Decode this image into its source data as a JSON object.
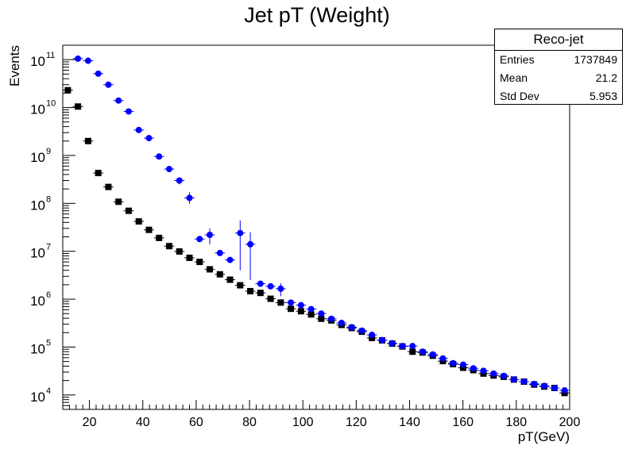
{
  "chart_data": {
    "type": "scatter",
    "title": "Jet pT (Weight)",
    "xlabel": "pT(GeV)",
    "ylabel": "Events",
    "xlim": [
      10,
      200
    ],
    "ylim": [
      5000,
      200000000000
    ],
    "log_y": true,
    "x_ticks": [
      20,
      40,
      60,
      80,
      100,
      120,
      140,
      160,
      180,
      200
    ],
    "y_ticks": [
      {
        "value": 10000,
        "base": "10",
        "exp": "4"
      },
      {
        "value": 100000,
        "base": "10",
        "exp": "5"
      },
      {
        "value": 1000000,
        "base": "10",
        "exp": "6"
      },
      {
        "value": 10000000,
        "base": "10",
        "exp": "7"
      },
      {
        "value": 100000000,
        "base": "10",
        "exp": "8"
      },
      {
        "value": 1000000000,
        "base": "10",
        "exp": "9"
      },
      {
        "value": 10000000000,
        "base": "10",
        "exp": "10"
      },
      {
        "value": 100000000000,
        "base": "10",
        "exp": "11"
      }
    ],
    "grid": false,
    "series": [
      {
        "color": "#000000",
        "marker": "square",
        "x": [
          11.9,
          15.7,
          19.5,
          23.3,
          27.1,
          30.9,
          34.7,
          38.5,
          42.3,
          46.1,
          49.9,
          53.7,
          57.5,
          61.3,
          65.1,
          68.9,
          72.7,
          76.5,
          80.3,
          84.1,
          87.9,
          91.7,
          95.5,
          99.3,
          103.1,
          106.9,
          110.7,
          114.5,
          118.3,
          122.1,
          125.9,
          129.7,
          133.5,
          137.3,
          141.1,
          144.9,
          148.7,
          152.5,
          156.3,
          160.1,
          163.9,
          167.7,
          171.5,
          175.3,
          179.1,
          182.9,
          186.7,
          190.5,
          194.3,
          198.1
        ],
        "y": [
          23000000000,
          10500000000,
          2000000000,
          430000000,
          220000000,
          108000000,
          70000000,
          42000000,
          28000000,
          19000000,
          12800000,
          9900000,
          7300000,
          6000000,
          4200000,
          3300000,
          2550000,
          1950000,
          1470000,
          1350000,
          1020000,
          850000,
          630000,
          560000,
          480000,
          390000,
          360000,
          290000,
          250000,
          210000,
          155000,
          138000,
          118000,
          103000,
          80000,
          77000,
          66000,
          51000,
          44000,
          37000,
          33000,
          28000,
          25500,
          24000,
          21000,
          19000,
          16500,
          15000,
          14000,
          11000
        ],
        "y_err": []
      },
      {
        "color": "#0000ff",
        "marker": "circle",
        "x": [
          15.7,
          19.5,
          23.3,
          27.1,
          30.9,
          34.7,
          38.5,
          42.3,
          46.1,
          49.9,
          53.7,
          57.5,
          61.3,
          65.1,
          68.9,
          72.7,
          76.5,
          80.3,
          84.1,
          87.9,
          91.7,
          95.5,
          99.3,
          103.1,
          106.9,
          110.7,
          114.5,
          118.3,
          122.1,
          125.9,
          129.7,
          133.5,
          137.3,
          141.1,
          144.9,
          148.7,
          152.5,
          156.3,
          160.1,
          163.9,
          167.7,
          171.5,
          175.3,
          179.1,
          182.9,
          186.7,
          190.5,
          194.3,
          198.1
        ],
        "y": [
          105000000000,
          95000000000,
          51000000000,
          30000000000,
          14000000000,
          8300000000,
          3400000000,
          2300000000,
          950000000,
          520000000,
          300000000,
          130000000,
          18000000,
          22000000,
          9200000,
          6600000,
          24000000,
          14000000,
          2100000,
          1850000,
          1650000,
          850000,
          750000,
          620000,
          500000,
          390000,
          320000,
          260000,
          220000,
          180000,
          140000,
          120000,
          105000,
          105000,
          80000,
          70000,
          58000,
          46000,
          43000,
          36000,
          32000,
          28000,
          25000,
          21000,
          19000,
          17000,
          15500,
          14000,
          12500
        ],
        "y_err_low": [
          0,
          0,
          0,
          0,
          0,
          0,
          0,
          0,
          0,
          0,
          50000000,
          32000000,
          0,
          8000000,
          0,
          0,
          20000000,
          11500000,
          0,
          0,
          500000,
          0,
          0,
          0,
          0,
          0,
          0,
          0,
          0,
          0,
          0,
          0,
          0,
          0,
          0,
          0,
          0,
          0,
          0,
          0,
          0,
          0,
          0,
          0,
          0,
          0,
          0,
          0,
          0
        ],
        "y_err_high": [
          0,
          0,
          0,
          0,
          0,
          0,
          0,
          0,
          0,
          0,
          0,
          40000000,
          0,
          8000000,
          0,
          0,
          20000000,
          11000000,
          0,
          0,
          500000,
          0,
          0,
          0,
          0,
          0,
          0,
          0,
          0,
          0,
          0,
          0,
          0,
          0,
          0,
          0,
          0,
          0,
          0,
          0,
          0,
          0,
          0,
          0,
          0,
          0,
          0,
          0,
          0,
          0
        ]
      }
    ],
    "stats_box": {
      "title": "Reco-jet",
      "rows": [
        {
          "label": "Entries",
          "value": "1737849"
        },
        {
          "label": "Mean",
          "value": "21.2"
        },
        {
          "label": "Std Dev",
          "value": "5.953"
        }
      ]
    }
  }
}
